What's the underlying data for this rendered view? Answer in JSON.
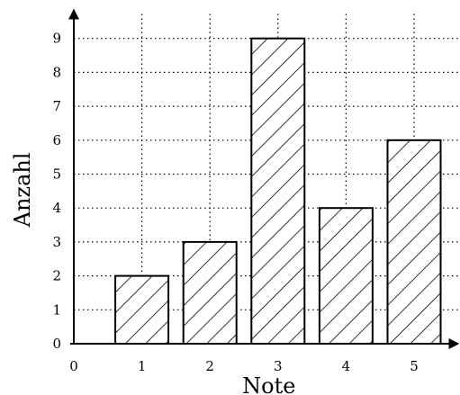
{
  "chart_data": {
    "type": "bar",
    "xlabel": "Note",
    "ylabel": "Anzahl",
    "x_ticks": [
      "0",
      "1",
      "2",
      "3",
      "4",
      "5"
    ],
    "y_ticks": [
      "0",
      "1",
      "2",
      "3",
      "4",
      "5",
      "6",
      "7",
      "8",
      "9"
    ],
    "categories": [
      "1",
      "2",
      "3",
      "4",
      "5"
    ],
    "values": [
      2,
      3,
      9,
      4,
      6
    ],
    "xlim": [
      0,
      5.5
    ],
    "ylim": [
      0,
      9.5
    ],
    "grid": true,
    "bar_style": "hatched"
  }
}
